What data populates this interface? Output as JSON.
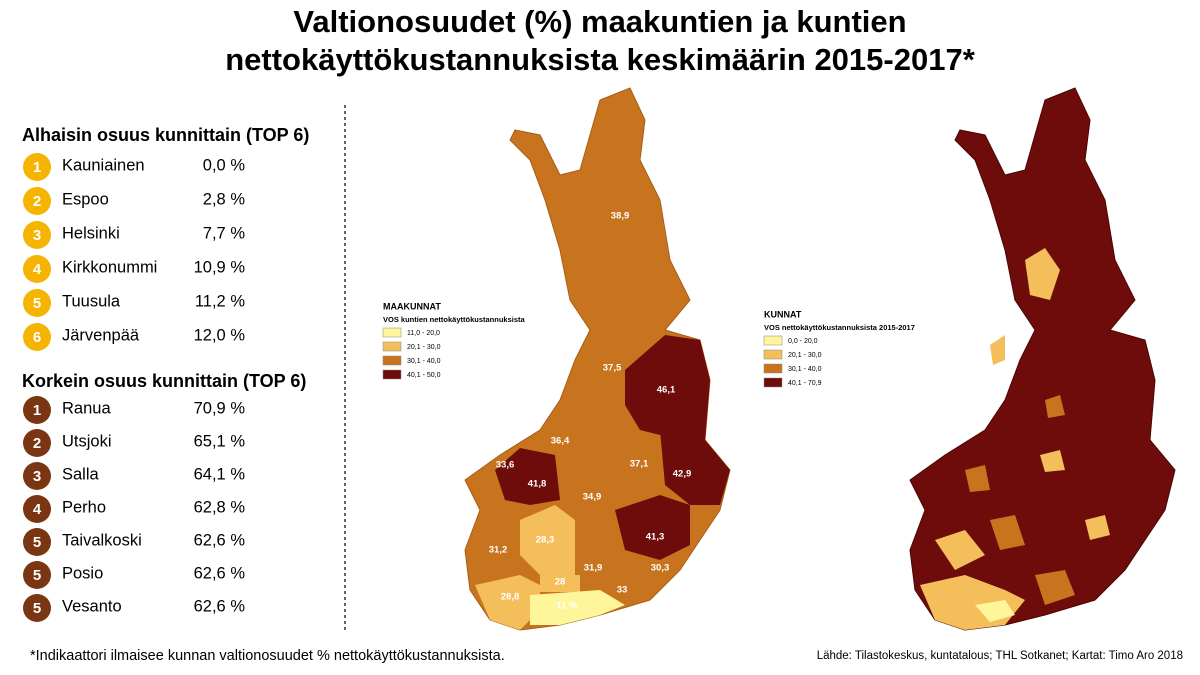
{
  "title": [
    "Valtionosuudet (%) maakuntien ja kuntien",
    "nettokäyttökustannuksista keskimäärin 2015-2017*"
  ],
  "lowest": {
    "heading": "Alhaisin osuus kunnittain (TOP 6)",
    "items": [
      {
        "rank": "1",
        "name": "Kauniainen",
        "value": "0,0 %"
      },
      {
        "rank": "2",
        "name": "Espoo",
        "value": "2,8 %"
      },
      {
        "rank": "3",
        "name": "Helsinki",
        "value": "7,7 %"
      },
      {
        "rank": "4",
        "name": "Kirkkonummi",
        "value": "10,9 %"
      },
      {
        "rank": "5",
        "name": "Tuusula",
        "value": "11,2 %"
      },
      {
        "rank": "6",
        "name": "Järvenpää",
        "value": "12,0 %"
      }
    ]
  },
  "highest": {
    "heading": "Korkein osuus kunnittain (TOP 6)",
    "items": [
      {
        "rank": "1",
        "name": "Ranua",
        "value": "70,9 %"
      },
      {
        "rank": "2",
        "name": "Utsjoki",
        "value": "65,1 %"
      },
      {
        "rank": "3",
        "name": "Salla",
        "value": "64,1 %"
      },
      {
        "rank": "4",
        "name": "Perho",
        "value": "62,8 %"
      },
      {
        "rank": "5",
        "name": "Taivalkoski",
        "value": "62,6 %"
      },
      {
        "rank": "5",
        "name": "Posio",
        "value": "62,6 %"
      },
      {
        "rank": "5",
        "name": "Vesanto",
        "value": "62,6 %"
      }
    ]
  },
  "region_map": {
    "legend_title": "MAAKUNNAT",
    "legend_subtitle": "VOS kuntien nettokäyttökustannuksista",
    "legend": [
      "11,0 - 20,0",
      "20,1 - 30,0",
      "30,1 - 40,0",
      "40,1 - 50,0"
    ],
    "labels": [
      "38,9",
      "37,5",
      "46,1",
      "36,4",
      "37,1",
      "33,6",
      "41,8",
      "34,9",
      "42,9",
      "41,3",
      "28,3",
      "31,2",
      "31,9",
      "30,3",
      "28",
      "33",
      "28,8",
      "11 %"
    ]
  },
  "municipality_map": {
    "legend_title": "KUNNAT",
    "legend_subtitle": "VOS nettokäyttökustannuksista 2015-2017",
    "legend": [
      "0,0 - 20,0",
      "20,1 - 30,0",
      "30,1 - 40,0",
      "40,1 - 70,9"
    ]
  },
  "footnote": "*Indikaattori ilmaisee kunnan valtionosuudet % nettokäyttökustannuksista.",
  "source": "Lähde: Tilastokeskus, kuntatalous; THL Sotkanet; Kartat: Timo Aro 2018"
}
